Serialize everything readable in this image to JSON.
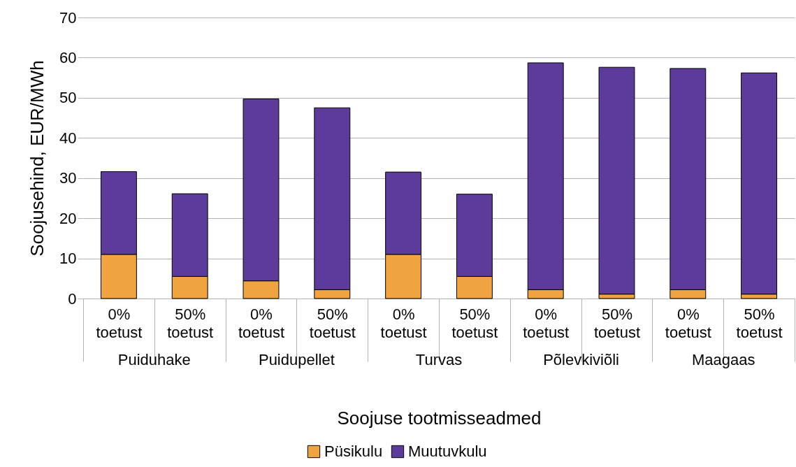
{
  "chart_data": {
    "type": "bar",
    "stacked": true,
    "categories": [
      "0% toetust",
      "50% toetust",
      "0% toetust",
      "50% toetust",
      "0% toetust",
      "50% toetust",
      "0% toetust",
      "50% toetust",
      "0% toetust",
      "50% toetust"
    ],
    "annotations": [
      "Puiduhake",
      "Puidupellet",
      "Turvas",
      "Põlevkiviõli",
      "Maagaas"
    ],
    "series": [
      {
        "name": "Püsikulu",
        "color": "#f0a43f",
        "values": [
          11,
          5.5,
          4.4,
          2.2,
          11,
          5.5,
          2.2,
          1.1,
          2.2,
          1.1
        ]
      },
      {
        "name": "Muutuvkulu",
        "color": "#5d3b9b",
        "values": [
          20.6,
          20.6,
          45.3,
          45.3,
          20.5,
          20.5,
          56.5,
          56.5,
          55.1,
          55.1
        ]
      }
    ],
    "xlabel": "Soojuse tootmisseadmed",
    "ylabel": "Soojusehind, EUR/MWh",
    "ylim": [
      0,
      70
    ],
    "yticks": [
      0,
      10,
      20,
      30,
      40,
      50,
      60,
      70
    ],
    "grid": "y",
    "legend": "bottom"
  }
}
